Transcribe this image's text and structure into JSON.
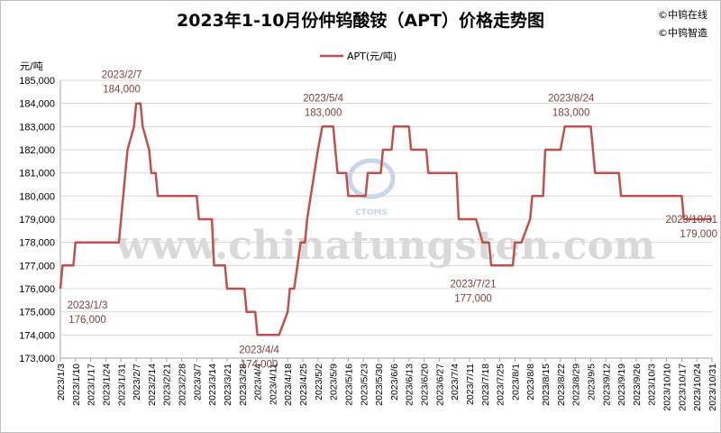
{
  "chart_data": {
    "type": "line",
    "title": "2023年1-10月份仲钨酸铵（APT）价格走势图",
    "ylabel": "元/吨",
    "xlabel": "",
    "ylim": [
      173000,
      185000
    ],
    "yticks": [
      173000,
      174000,
      175000,
      176000,
      177000,
      178000,
      179000,
      180000,
      181000,
      182000,
      183000,
      184000,
      185000
    ],
    "ytick_labels": [
      "173,000",
      "174,000",
      "175,000",
      "176,000",
      "177,000",
      "178,000",
      "179,000",
      "180,000",
      "181,000",
      "182,000",
      "183,000",
      "184,000",
      "185,000"
    ],
    "xtick_labels": [
      "2023/1/3",
      "2023/1/10",
      "2023/1/17",
      "2023/1/24",
      "2023/1/31",
      "2023/2/7",
      "2023/2/14",
      "2023/2/21",
      "2023/2/28",
      "2023/3/7",
      "2023/3/14",
      "2023/3/21",
      "2023/3/28",
      "2023/4/4",
      "2023/4/11",
      "2023/4/18",
      "2023/4/25",
      "2023/5/2",
      "2023/5/9",
      "2023/5/16",
      "2023/5/23",
      "2023/5/30",
      "2023/6/6",
      "2023/6/13",
      "2023/6/20",
      "2023/6/27",
      "2023/7/4",
      "2023/7/11",
      "2023/7/18",
      "2023/7/25",
      "2023/8/1",
      "2023/8/8",
      "2023/8/15",
      "2023/8/22",
      "2023/8/29",
      "2023/9/5",
      "2023/9/12",
      "2023/9/19",
      "2023/9/26",
      "2023/10/3",
      "2023/10/10",
      "2023/10/17",
      "2023/10/24",
      "2023/10/31"
    ],
    "legend_position": "top-center",
    "grid": true,
    "series": [
      {
        "name": "APT(元/吨)",
        "color": "#c0504d",
        "points": [
          [
            "2023-01-03",
            176000
          ],
          [
            "2023-01-04",
            177000
          ],
          [
            "2023-01-09",
            177000
          ],
          [
            "2023-01-10",
            178000
          ],
          [
            "2023-01-30",
            178000
          ],
          [
            "2023-01-31",
            179000
          ],
          [
            "2023-02-01",
            180000
          ],
          [
            "2023-02-02",
            181000
          ],
          [
            "2023-02-03",
            182000
          ],
          [
            "2023-02-06",
            183000
          ],
          [
            "2023-02-07",
            184000
          ],
          [
            "2023-02-09",
            184000
          ],
          [
            "2023-02-10",
            183000
          ],
          [
            "2023-02-13",
            182000
          ],
          [
            "2023-02-14",
            181000
          ],
          [
            "2023-02-16",
            181000
          ],
          [
            "2023-02-17",
            180000
          ],
          [
            "2023-03-07",
            180000
          ],
          [
            "2023-03-08",
            179000
          ],
          [
            "2023-03-14",
            179000
          ],
          [
            "2023-03-15",
            177000
          ],
          [
            "2023-03-20",
            177000
          ],
          [
            "2023-03-21",
            176000
          ],
          [
            "2023-03-29",
            176000
          ],
          [
            "2023-03-30",
            175000
          ],
          [
            "2023-04-03",
            175000
          ],
          [
            "2023-04-04",
            174000
          ],
          [
            "2023-04-14",
            174000
          ],
          [
            "2023-04-18",
            175000
          ],
          [
            "2023-04-19",
            176000
          ],
          [
            "2023-04-21",
            176000
          ],
          [
            "2023-04-24",
            178000
          ],
          [
            "2023-04-26",
            178000
          ],
          [
            "2023-04-27",
            179000
          ],
          [
            "2023-05-02",
            182000
          ],
          [
            "2023-05-04",
            183000
          ],
          [
            "2023-05-09",
            183000
          ],
          [
            "2023-05-10",
            182000
          ],
          [
            "2023-05-11",
            181000
          ],
          [
            "2023-05-15",
            181000
          ],
          [
            "2023-05-16",
            180000
          ],
          [
            "2023-05-24",
            180000
          ],
          [
            "2023-05-25",
            181000
          ],
          [
            "2023-05-31",
            181000
          ],
          [
            "2023-06-01",
            182000
          ],
          [
            "2023-06-05",
            182000
          ],
          [
            "2023-06-06",
            183000
          ],
          [
            "2023-06-13",
            183000
          ],
          [
            "2023-06-14",
            182000
          ],
          [
            "2023-06-21",
            182000
          ],
          [
            "2023-06-22",
            181000
          ],
          [
            "2023-07-05",
            181000
          ],
          [
            "2023-07-06",
            179000
          ],
          [
            "2023-07-14",
            179000
          ],
          [
            "2023-07-17",
            178000
          ],
          [
            "2023-07-20",
            178000
          ],
          [
            "2023-07-21",
            177000
          ],
          [
            "2023-07-31",
            177000
          ],
          [
            "2023-08-01",
            178000
          ],
          [
            "2023-08-04",
            178000
          ],
          [
            "2023-08-08",
            179000
          ],
          [
            "2023-08-09",
            180000
          ],
          [
            "2023-08-14",
            180000
          ],
          [
            "2023-08-15",
            182000
          ],
          [
            "2023-08-22",
            182000
          ],
          [
            "2023-08-24",
            183000
          ],
          [
            "2023-09-05",
            183000
          ],
          [
            "2023-09-06",
            182000
          ],
          [
            "2023-09-07",
            181000
          ],
          [
            "2023-09-18",
            181000
          ],
          [
            "2023-09-19",
            180000
          ],
          [
            "2023-10-17",
            180000
          ],
          [
            "2023-10-18",
            179000
          ],
          [
            "2023-10-31",
            179000
          ]
        ]
      }
    ],
    "annotations": [
      {
        "date": "2023-01-03",
        "value": 176000,
        "text": "2023/1/3\n176,000"
      },
      {
        "date": "2023-02-07",
        "value": 184000,
        "text": "2023/2/7\n184,000"
      },
      {
        "date": "2023-04-04",
        "value": 174000,
        "text": "2023/4/4\n174,000"
      },
      {
        "date": "2023-05-04",
        "value": 183000,
        "text": "2023/5/4\n183,000"
      },
      {
        "date": "2023-07-21",
        "value": 177000,
        "text": "2023/7/21\n177,000"
      },
      {
        "date": "2023-08-24",
        "value": 183000,
        "text": "2023/8/24\n183,000"
      },
      {
        "date": "2023-10-31",
        "value": 179000,
        "text": "2023/10/31\n179,000"
      }
    ]
  },
  "brand": {
    "line1": "©中钨在线",
    "line2": "©中钨智造"
  },
  "watermark": {
    "url": "www.chinatungsten.com",
    "logo": "CTOMS"
  }
}
